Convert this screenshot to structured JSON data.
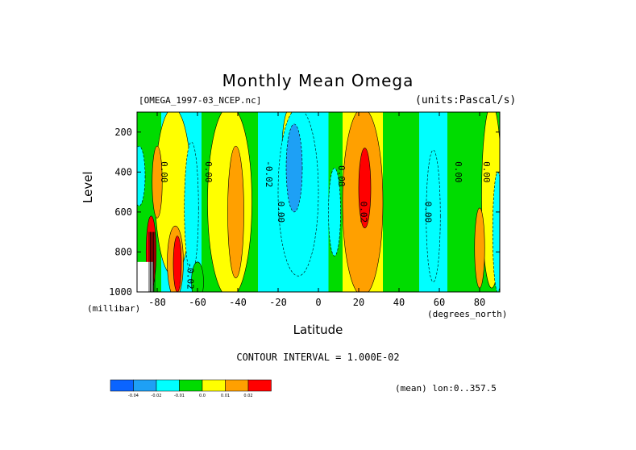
{
  "chart_data": {
    "type": "heatmap",
    "title": "Monthly Mean Omega",
    "file_label": "[OMEGA_1997-03_NCEP.nc]",
    "units_label": "(units:Pascal/s)",
    "xlabel": "Latitude",
    "ylabel": "Level",
    "x_unit": "(degrees_north)",
    "y_unit": "(millibar)",
    "xlim": [
      -90,
      90
    ],
    "ylim": [
      1000,
      100
    ],
    "x_ticks": [
      -80,
      -60,
      -40,
      -20,
      0,
      20,
      40,
      60,
      80
    ],
    "y_ticks": [
      200,
      400,
      600,
      800,
      1000
    ],
    "contour_interval": "CONTOUR INTERVAL = 1.000E-02",
    "mean_note": "(mean) lon:0..357.5",
    "colorbar": {
      "colors": [
        "#0a64ff",
        "#1ea0f5",
        "#00ffff",
        "#00dc00",
        "#ffff00",
        "#ffa000",
        "#ff0000"
      ],
      "labels": [
        "-0.04",
        "-0.02",
        "-0.01",
        "0.0",
        "0.01",
        "0.02"
      ]
    },
    "contour_labels": [
      "0.00",
      "0.00",
      "-0.02",
      "0.00",
      "0.00",
      "0.02",
      "0.00",
      "0.00",
      "0.00",
      "-0.02"
    ],
    "bands": [
      {
        "x0": -90,
        "x1": -86,
        "p_top": 100,
        "p_bot": 1000,
        "level": "0.0"
      },
      {
        "x0": -86,
        "x1": -78,
        "p_top": 100,
        "p_bot": 1000,
        "level": "0.0"
      },
      {
        "x0": -78,
        "x1": -68,
        "p_top": 100,
        "p_bot": 1000,
        "level": "-0.01"
      },
      {
        "x0": -68,
        "x1": -58,
        "p_top": 100,
        "p_bot": 1000,
        "level": "-0.01"
      },
      {
        "x0": -58,
        "x1": -30,
        "p_top": 100,
        "p_bot": 1000,
        "level": "0.0"
      },
      {
        "x0": -30,
        "x1": -24,
        "p_top": 100,
        "p_bot": 1000,
        "level": "-0.01"
      },
      {
        "x0": -24,
        "x1": 5,
        "p_top": 100,
        "p_bot": 1000,
        "level": "-0.01"
      },
      {
        "x0": 5,
        "x1": 12,
        "p_top": 100,
        "p_bot": 1000,
        "level": "0.0"
      },
      {
        "x0": 12,
        "x1": 32,
        "p_top": 100,
        "p_bot": 1000,
        "level": "0.01"
      },
      {
        "x0": 32,
        "x1": 50,
        "p_top": 100,
        "p_bot": 1000,
        "level": "0.0"
      },
      {
        "x0": 50,
        "x1": 64,
        "p_top": 100,
        "p_bot": 1000,
        "level": "-0.01"
      },
      {
        "x0": 64,
        "x1": 90,
        "p_top": 100,
        "p_bot": 1000,
        "level": "0.0"
      }
    ]
  }
}
